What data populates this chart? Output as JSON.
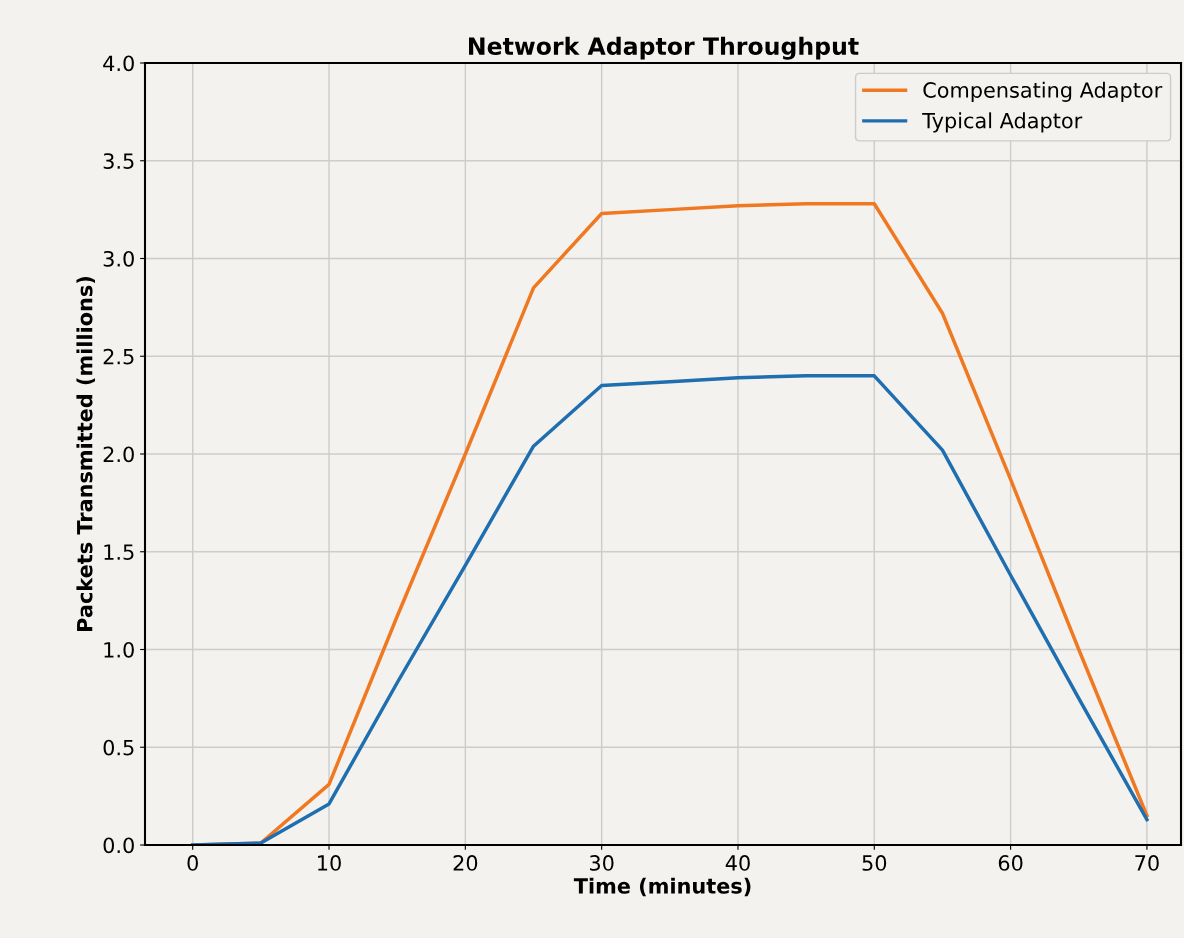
{
  "chart_data": {
    "type": "line",
    "title": "Network Adaptor Throughput",
    "xlabel": "Time (minutes)",
    "ylabel": "Packets Transmitted (millions)",
    "x": [
      0,
      5,
      10,
      15,
      20,
      25,
      30,
      35,
      40,
      45,
      50,
      55,
      60,
      65,
      70
    ],
    "series": [
      {
        "name": "Compensating Adaptor",
        "color": "#f07820",
        "values": [
          0,
          0.01,
          0.31,
          1.17,
          2.0,
          2.85,
          3.23,
          3.25,
          3.27,
          3.28,
          3.28,
          2.72,
          1.87,
          1.0,
          0.15
        ]
      },
      {
        "name": "Typical Adaptor",
        "color": "#1f6eb0",
        "values": [
          0,
          0.01,
          0.21,
          0.83,
          1.43,
          2.04,
          2.35,
          2.37,
          2.39,
          2.4,
          2.4,
          2.02,
          1.38,
          0.75,
          0.13
        ]
      }
    ],
    "xlim": [
      -3.5,
      72.5
    ],
    "xticks": [
      0,
      10,
      20,
      30,
      40,
      50,
      60,
      70
    ],
    "ylim": [
      0,
      4
    ],
    "yticks": [
      {
        "value": 0,
        "label": "0.0"
      },
      {
        "value": 0.5,
        "label": "0.5"
      },
      {
        "value": 1,
        "label": "1.0"
      },
      {
        "value": 1.5,
        "label": "1.5"
      },
      {
        "value": 2,
        "label": "2.0"
      },
      {
        "value": 2.5,
        "label": "2.5"
      },
      {
        "value": 3,
        "label": "3.0"
      },
      {
        "value": 3.5,
        "label": "3.5"
      },
      {
        "value": 4,
        "label": "4.0"
      }
    ],
    "grid": true,
    "legend": "top right",
    "marker": "none",
    "line_style": "solid"
  }
}
